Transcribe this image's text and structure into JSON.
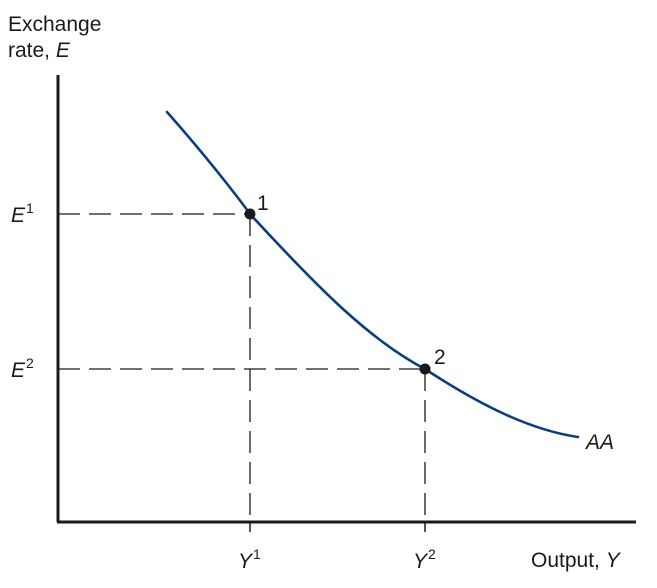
{
  "axes": {
    "y_label_line1": "Exchange",
    "y_label_line2_prefix": "rate, ",
    "y_label_line2_var": "E",
    "x_label_prefix": "Output, ",
    "x_label_var": "Y"
  },
  "ticks": {
    "y": [
      {
        "base": "E",
        "sup": "1"
      },
      {
        "base": "E",
        "sup": "2"
      }
    ],
    "x": [
      {
        "base": "Y",
        "sup": "1"
      },
      {
        "base": "Y",
        "sup": "2"
      }
    ]
  },
  "points": [
    {
      "label": "1"
    },
    {
      "label": "2"
    }
  ],
  "curve": {
    "label": "AA",
    "color": "#0b3e80"
  },
  "colors": {
    "axis": "#1a1a1a",
    "guide": "#1a1a1a",
    "point": "#1a1a1a"
  }
}
